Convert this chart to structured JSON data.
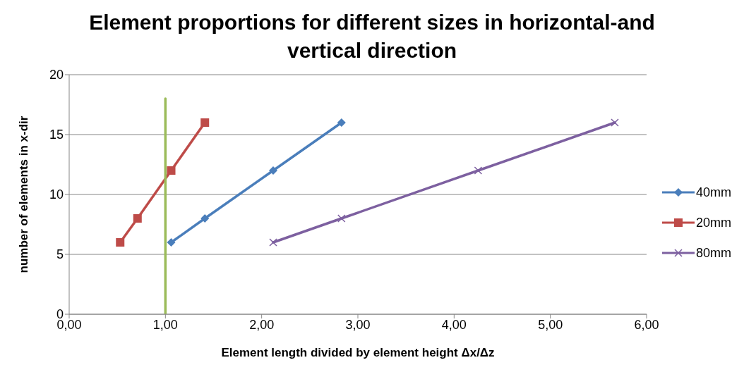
{
  "chart_data": {
    "type": "line",
    "title": "Element proportions for different sizes in horizontal-and vertical direction",
    "xlabel": "Element length divided by element height Δx/Δz",
    "ylabel": "number of elements in x-dir",
    "series": [
      {
        "name": "40mm",
        "color": "#4a7ebb",
        "marker": "diamond",
        "x": [
          1.06,
          1.41,
          2.12,
          2.83
        ],
        "values": [
          6,
          8,
          12,
          16
        ]
      },
      {
        "name": "20mm",
        "color": "#be4b48",
        "marker": "square",
        "x": [
          0.53,
          0.71,
          1.06,
          1.41
        ],
        "values": [
          6,
          8,
          12,
          16
        ]
      },
      {
        "name": "80mm",
        "color": "#7d60a0",
        "marker": "cross",
        "x": [
          2.12,
          2.83,
          4.25,
          5.67
        ],
        "values": [
          6,
          8,
          12,
          16
        ]
      },
      {
        "color": "#9bbb59",
        "marker": "none",
        "x": [
          1,
          1
        ],
        "values": [
          0,
          18
        ]
      }
    ],
    "xlim": [
      0,
      6
    ],
    "xticks": [
      {
        "value": 0,
        "label": "0,00"
      },
      {
        "value": 1,
        "label": "1,00"
      },
      {
        "value": 2,
        "label": "2,00"
      },
      {
        "value": 3,
        "label": "3,00"
      },
      {
        "value": 4,
        "label": "4,00"
      },
      {
        "value": 5,
        "label": "5,00"
      },
      {
        "value": 6,
        "label": "6,00"
      }
    ],
    "ylim": [
      0,
      20
    ],
    "yticks": [
      0,
      5,
      10,
      15,
      20
    ],
    "grid": "y",
    "legend": "right"
  }
}
